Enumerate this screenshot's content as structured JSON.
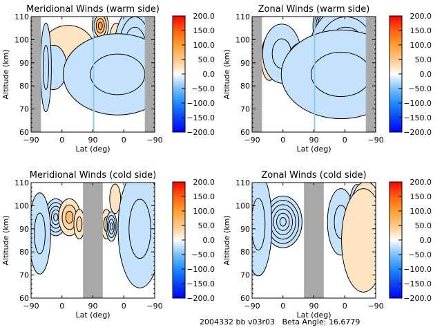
{
  "footer": "2004332 bb v03r03   Beta Angle: 16.6779",
  "colorbar": {
    "ticks": [
      "200.0",
      "150.0",
      "100.0",
      "50.0",
      "0.0",
      "−50.0",
      "−100.0",
      "−150.0",
      "−200.0"
    ],
    "range": [
      -200,
      200
    ],
    "colors": [
      "#0000ff",
      "#0a5af0",
      "#1e8cff",
      "#7dc0f5",
      "#ffffff",
      "#ffe0b8",
      "#ffa030",
      "#ff6010",
      "#ff0000"
    ]
  },
  "chart_data": [
    {
      "type": "heatmap",
      "title": "Meridional Winds (warm side)",
      "xlabel": "Lat (deg)",
      "ylabel": "Altitude (km)",
      "xticks": [
        "−90",
        "0",
        "90",
        "0",
        "−90"
      ],
      "yticks": [
        "60",
        "70",
        "80",
        "90",
        "100",
        "110"
      ],
      "ylim": [
        60,
        110
      ],
      "colorbar_range": [
        -200,
        200
      ],
      "masked_regions": [
        "lat-index 0-0.08",
        "lat-index 0.92-1.0"
      ],
      "features": [
        {
          "lat_frac": 0.3,
          "alt": 95,
          "value": 20,
          "sx": 0.1,
          "sy": 7
        },
        {
          "lat_frac": 0.18,
          "alt": 88,
          "value": -20,
          "sx": 0.05,
          "sy": 6
        },
        {
          "lat_frac": 0.12,
          "alt": 88,
          "value": -25,
          "sx": 0.02,
          "sy": 12
        },
        {
          "lat_frac": 0.4,
          "alt": 88,
          "value": -20,
          "sx": 0.05,
          "sy": 4
        },
        {
          "lat_frac": 0.56,
          "alt": 88,
          "value": -150,
          "sx": 0.05,
          "sy": 8
        },
        {
          "lat_frac": 0.56,
          "alt": 106,
          "value": 90,
          "sx": 0.03,
          "sy": 4
        },
        {
          "lat_frac": 0.69,
          "alt": 96,
          "value": 20,
          "sx": 0.03,
          "sy": 7
        },
        {
          "lat_frac": 0.84,
          "alt": 92,
          "value": -110,
          "sx": 0.08,
          "sy": 14
        },
        {
          "lat_frac": 0.7,
          "alt": 85,
          "value": -40,
          "sx": 0.2,
          "sy": 11
        }
      ]
    },
    {
      "type": "heatmap",
      "title": "Zonal Winds (warm side)",
      "xlabel": "Lat (deg)",
      "ylabel": "Altitude (km)",
      "xticks": [
        "−90",
        "0",
        "90",
        "0",
        "−90"
      ],
      "yticks": [
        "60",
        "70",
        "80",
        "90",
        "100",
        "110"
      ],
      "ylim": [
        60,
        110
      ],
      "colorbar_range": [
        -200,
        200
      ],
      "masked_regions": [
        "lat-index 0-0.08",
        "lat-index 0.92-1.0"
      ],
      "features": [
        {
          "lat_frac": 0.14,
          "alt": 92,
          "value": 50,
          "sx": 0.03,
          "sy": 6
        },
        {
          "lat_frac": 0.24,
          "alt": 94,
          "value": -45,
          "sx": 0.07,
          "sy": 8
        },
        {
          "lat_frac": 0.42,
          "alt": 91,
          "value": 80,
          "sx": 0.06,
          "sy": 5
        },
        {
          "lat_frac": 0.58,
          "alt": 106,
          "value": -160,
          "sx": 0.04,
          "sy": 5
        },
        {
          "lat_frac": 0.6,
          "alt": 88,
          "value": 15,
          "sx": 0.02,
          "sy": 3
        },
        {
          "lat_frac": 0.76,
          "alt": 92,
          "value": -120,
          "sx": 0.14,
          "sy": 14
        },
        {
          "lat_frac": 0.72,
          "alt": 85,
          "value": -45,
          "sx": 0.22,
          "sy": 12
        }
      ]
    },
    {
      "type": "heatmap",
      "title": "Meridional Winds (cold side)",
      "xlabel": "Lat (deg)",
      "ylabel": "Altitude (km)",
      "xticks": [
        "−90",
        "0",
        "90",
        "0",
        "−90"
      ],
      "yticks": [
        "60",
        "70",
        "80",
        "90",
        "100",
        "110"
      ],
      "ylim": [
        60,
        110
      ],
      "colorbar_range": [
        -200,
        200
      ],
      "masked_regions": [
        "lat-index 0.42-0.58"
      ],
      "features": [
        {
          "lat_frac": 0.2,
          "alt": 95,
          "value": -110,
          "sx": 0.04,
          "sy": 5
        },
        {
          "lat_frac": 0.31,
          "alt": 95,
          "value": 70,
          "sx": 0.04,
          "sy": 5
        },
        {
          "lat_frac": 0.39,
          "alt": 92,
          "value": 25,
          "sx": 0.02,
          "sy": 4
        },
        {
          "lat_frac": 0.07,
          "alt": 88,
          "value": -40,
          "sx": 0.04,
          "sy": 11
        },
        {
          "lat_frac": 0.61,
          "alt": 92,
          "value": 40,
          "sx": 0.02,
          "sy": 4
        },
        {
          "lat_frac": 0.65,
          "alt": 91,
          "value": -90,
          "sx": 0.02,
          "sy": 4
        },
        {
          "lat_frac": 0.68,
          "alt": 103,
          "value": 20,
          "sx": 0.02,
          "sy": 4
        },
        {
          "lat_frac": 0.91,
          "alt": 100,
          "value": 20,
          "sx": 0.03,
          "sy": 6
        },
        {
          "lat_frac": 0.88,
          "alt": 90,
          "value": -35,
          "sx": 0.08,
          "sy": 16
        }
      ]
    },
    {
      "type": "heatmap",
      "title": "Zonal Winds (cold side)",
      "xlabel": "Lat (deg)",
      "ylabel": "Altitude (km)",
      "xticks": [
        "−90",
        "0",
        "90",
        "0",
        "−90"
      ],
      "yticks": [
        "60",
        "70",
        "80",
        "90",
        "100",
        "110"
      ],
      "ylim": [
        60,
        110
      ],
      "colorbar_range": [
        -200,
        200
      ],
      "masked_regions": [
        "lat-index 0.42-0.58"
      ],
      "features": [
        {
          "lat_frac": 0.25,
          "alt": 93,
          "value": -130,
          "sx": 0.07,
          "sy": 7
        },
        {
          "lat_frac": 0.05,
          "alt": 92,
          "value": -40,
          "sx": 0.05,
          "sy": 14
        },
        {
          "lat_frac": 0.72,
          "alt": 93,
          "value": -40,
          "sx": 0.05,
          "sy": 9
        },
        {
          "lat_frac": 0.85,
          "alt": 98,
          "value": -60,
          "sx": 0.03,
          "sy": 7
        },
        {
          "lat_frac": 0.92,
          "alt": 96,
          "value": 90,
          "sx": 0.06,
          "sy": 9
        },
        {
          "lat_frac": 0.9,
          "alt": 85,
          "value": 20,
          "sx": 0.08,
          "sy": 14
        }
      ]
    }
  ]
}
